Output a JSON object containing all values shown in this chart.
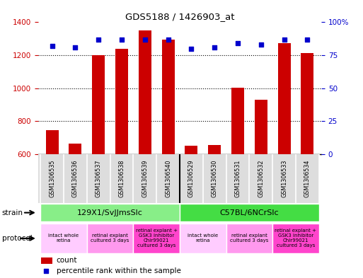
{
  "title": "GDS5188 / 1426903_at",
  "samples": [
    "GSM1306535",
    "GSM1306536",
    "GSM1306537",
    "GSM1306538",
    "GSM1306539",
    "GSM1306540",
    "GSM1306529",
    "GSM1306530",
    "GSM1306531",
    "GSM1306532",
    "GSM1306533",
    "GSM1306534"
  ],
  "counts": [
    745,
    665,
    1200,
    1240,
    1350,
    1295,
    650,
    655,
    1005,
    930,
    1275,
    1215
  ],
  "percentiles": [
    82,
    81,
    87,
    87,
    87,
    87,
    80,
    81,
    84,
    83,
    87,
    87
  ],
  "ylim_left": [
    600,
    1400
  ],
  "ylim_right": [
    0,
    100
  ],
  "yticks_left": [
    600,
    800,
    1000,
    1200,
    1400
  ],
  "yticks_right": [
    0,
    25,
    50,
    75,
    100
  ],
  "bar_color": "#cc0000",
  "scatter_color": "#0000cc",
  "strain_groups": [
    {
      "label": "129X1/SvJJmsSlc",
      "start": 0,
      "end": 5,
      "color": "#88ee88"
    },
    {
      "label": "C57BL/6NCrSlc",
      "start": 6,
      "end": 11,
      "color": "#44dd44"
    }
  ],
  "protocol_groups": [
    {
      "label": "intact whole\nretina",
      "start": 0,
      "end": 1,
      "color": "#ffccff"
    },
    {
      "label": "retinal explant\ncultured 3 days",
      "start": 2,
      "end": 3,
      "color": "#ff99ee"
    },
    {
      "label": "retinal explant +\nGSK3 inhibitor\nChir99021\ncultured 3 days",
      "start": 4,
      "end": 5,
      "color": "#ff44cc"
    },
    {
      "label": "intact whole\nretina",
      "start": 6,
      "end": 7,
      "color": "#ffccff"
    },
    {
      "label": "retinal explant\ncultured 3 days",
      "start": 8,
      "end": 9,
      "color": "#ff99ee"
    },
    {
      "label": "retinal explant +\nGSK3 inhibitor\nChir99021\ncultured 3 days",
      "start": 10,
      "end": 11,
      "color": "#ff44cc"
    }
  ],
  "left_axis_color": "#cc0000",
  "right_axis_color": "#0000cc",
  "bar_color_legend": "#cc0000",
  "scatter_color_legend": "#0000cc",
  "grid_color": "#000000",
  "sample_bg_color": "#dddddd",
  "sample_border_color": "#ffffff",
  "strain_border_color": "#ffffff",
  "protocol_border_color": "#ffffff"
}
